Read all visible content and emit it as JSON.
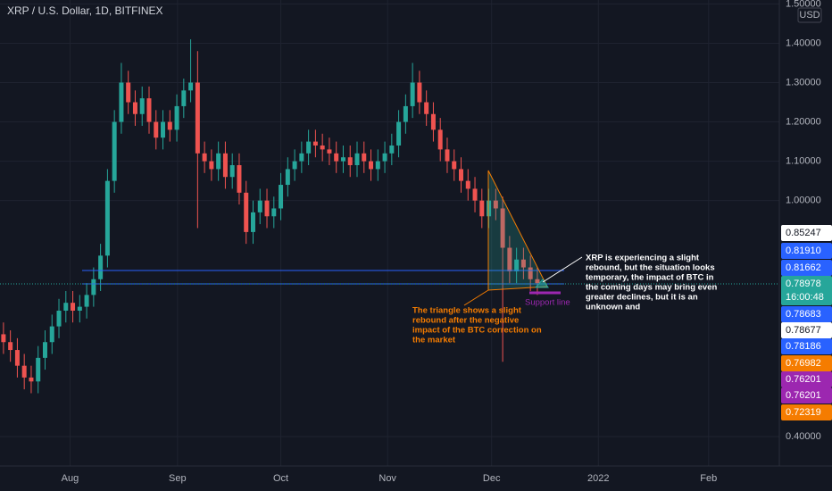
{
  "chart_data": {
    "type": "candlestick",
    "title": "XRP / U.S. Dollar, 1D, BITFINEX",
    "currency": "USD",
    "open": [
      0.66,
      0.64,
      0.62,
      0.58,
      0.55,
      0.54,
      0.6,
      0.64,
      0.68,
      0.72,
      0.74,
      0.72,
      0.73,
      0.76,
      0.8,
      0.86,
      1.05,
      1.2,
      1.3,
      1.25,
      1.22,
      1.26,
      1.2,
      1.16,
      1.2,
      1.18,
      1.24,
      1.28,
      1.3,
      1.12,
      1.1,
      1.08,
      1.12,
      1.06,
      1.09,
      1.02,
      0.92,
      0.97,
      1.0,
      0.96,
      0.98,
      1.04,
      1.08,
      1.1,
      1.12,
      1.15,
      1.14,
      1.13,
      1.12,
      1.1,
      1.11,
      1.09,
      1.12,
      1.1,
      1.08,
      1.1,
      1.12,
      1.14,
      1.2,
      1.24,
      1.3,
      1.25,
      1.22,
      1.18,
      1.13,
      1.1,
      1.08,
      1.05,
      1.03,
      1.0,
      0.96,
      1.0,
      0.98,
      0.88,
      0.82,
      0.85,
      0.83,
      0.8
    ],
    "high": [
      0.69,
      0.67,
      0.65,
      0.61,
      0.58,
      0.63,
      0.67,
      0.71,
      0.75,
      0.77,
      0.77,
      0.76,
      0.79,
      0.83,
      0.89,
      1.08,
      1.23,
      1.35,
      1.33,
      1.28,
      1.29,
      1.29,
      1.23,
      1.23,
      1.23,
      1.27,
      1.31,
      1.41,
      1.38,
      1.15,
      1.13,
      1.15,
      1.15,
      1.12,
      1.12,
      1.05,
      1.0,
      1.03,
      1.03,
      1.01,
      1.07,
      1.11,
      1.13,
      1.15,
      1.18,
      1.18,
      1.17,
      1.16,
      1.15,
      1.14,
      1.14,
      1.15,
      1.15,
      1.13,
      1.13,
      1.15,
      1.17,
      1.23,
      1.27,
      1.35,
      1.33,
      1.28,
      1.25,
      1.21,
      1.16,
      1.13,
      1.11,
      1.08,
      1.06,
      1.03,
      1.03,
      1.03,
      1.01,
      0.91,
      0.88,
      0.88,
      0.86,
      0.83
    ],
    "low": [
      0.61,
      0.59,
      0.55,
      0.52,
      0.51,
      0.51,
      0.57,
      0.61,
      0.65,
      0.69,
      0.69,
      0.69,
      0.7,
      0.73,
      0.77,
      0.83,
      1.02,
      1.17,
      1.22,
      1.19,
      1.19,
      1.17,
      1.13,
      1.13,
      1.15,
      1.15,
      1.21,
      1.25,
      0.93,
      1.07,
      1.05,
      1.05,
      1.03,
      1.03,
      0.99,
      0.89,
      0.89,
      0.94,
      0.93,
      0.93,
      0.95,
      1.01,
      1.05,
      1.07,
      1.09,
      1.11,
      1.1,
      1.09,
      1.07,
      1.07,
      1.06,
      1.06,
      1.07,
      1.05,
      1.05,
      1.07,
      1.09,
      1.11,
      1.17,
      1.21,
      1.22,
      1.19,
      1.15,
      1.1,
      1.07,
      1.05,
      1.02,
      1.0,
      0.97,
      0.93,
      0.93,
      0.95,
      0.59,
      0.79,
      0.79,
      0.8,
      0.77,
      0.76
    ],
    "close": [
      0.64,
      0.62,
      0.58,
      0.55,
      0.54,
      0.6,
      0.64,
      0.68,
      0.72,
      0.74,
      0.72,
      0.73,
      0.76,
      0.8,
      0.86,
      1.05,
      1.2,
      1.3,
      1.25,
      1.22,
      1.26,
      1.2,
      1.16,
      1.2,
      1.18,
      1.24,
      1.28,
      1.3,
      1.12,
      1.1,
      1.08,
      1.12,
      1.06,
      1.09,
      1.02,
      0.92,
      0.97,
      1.0,
      0.96,
      0.98,
      1.04,
      1.08,
      1.1,
      1.12,
      1.15,
      1.14,
      1.13,
      1.12,
      1.1,
      1.11,
      1.09,
      1.12,
      1.1,
      1.08,
      1.1,
      1.12,
      1.14,
      1.2,
      1.24,
      1.3,
      1.25,
      1.22,
      1.18,
      1.13,
      1.1,
      1.08,
      1.05,
      1.03,
      1.0,
      0.96,
      1.0,
      0.98,
      0.88,
      0.82,
      0.85,
      0.83,
      0.8,
      0.79
    ],
    "up_color": "#26a69a",
    "down_color": "#ef5350",
    "xlim": [
      -0.5,
      111.9
    ],
    "xticks": [
      {
        "value": 9.6,
        "label": "Aug"
      },
      {
        "value": 25.1,
        "label": "Sep"
      },
      {
        "value": 40.0,
        "label": "Oct"
      },
      {
        "value": 55.4,
        "label": "Nov"
      },
      {
        "value": 70.4,
        "label": "Dec"
      },
      {
        "value": 85.8,
        "label": "2022"
      },
      {
        "value": 101.7,
        "label": "Feb"
      }
    ],
    "ylim": [
      0.325,
      1.51
    ],
    "yticks": [
      {
        "value": 0.4,
        "label": "0.40000"
      },
      {
        "value": 1.0,
        "label": "1.00000"
      },
      {
        "value": 1.1,
        "label": "1.10000"
      },
      {
        "value": 1.2,
        "label": "1.20000"
      },
      {
        "value": 1.3,
        "label": "1.30000"
      },
      {
        "value": 1.4,
        "label": "1.40000"
      },
      {
        "value": 1.5,
        "label": "1.50000"
      }
    ],
    "grid": true
  },
  "price_labels": [
    {
      "text": "0.85247",
      "bg": "#ffffff",
      "fg": "#131722"
    },
    {
      "text": "0.81910",
      "bg": "#2962ff",
      "fg": "#ffffff"
    },
    {
      "text": "0.81662",
      "bg": "#2962ff",
      "fg": "#ffffff"
    },
    {
      "text": "0.78978",
      "bg": "#26a69a",
      "fg": "#ffffff"
    },
    {
      "text": "16:00:48",
      "bg": "#26a69a",
      "fg": "#ffffff"
    },
    {
      "text": "0.78683",
      "bg": "#2962ff",
      "fg": "#ffffff"
    },
    {
      "text": "0.78677",
      "bg": "#ffffff",
      "fg": "#131722"
    },
    {
      "text": "0.78186",
      "bg": "#2962ff",
      "fg": "#ffffff"
    },
    {
      "text": "0.76982",
      "bg": "#f57c00",
      "fg": "#ffffff"
    },
    {
      "text": "0.76201",
      "bg": "#9c27b0",
      "fg": "#ffffff"
    },
    {
      "text": "0.76201",
      "bg": "#9c27b0",
      "fg": "#ffffff"
    },
    {
      "text": "0.72319",
      "bg": "#f57c00",
      "fg": "#ffffff"
    }
  ],
  "annotations": {
    "triangle_note": [
      "The triangle shows a slight",
      "rebound after the negative",
      "impact of the BTC correction on",
      "the market"
    ],
    "support": "Support line",
    "outlook_note": [
      "XRP is experiencing a slight",
      "rebound, but the situation looks",
      "temporary, the impact of BTC in",
      "the coming days may bring even",
      "greater declines, but it is an",
      "unknown and"
    ]
  }
}
